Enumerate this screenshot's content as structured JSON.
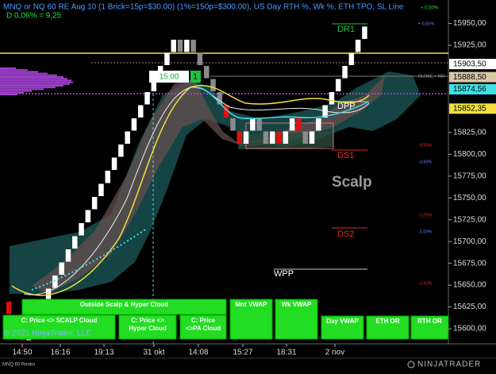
{
  "header": {
    "title": "MNQ or NQ 60 RE Aug 10 (1 Brick=15p=$30.00) (1%=150p=$300.00), US Day RTH %, Wk %, ETH TPO, SL Line",
    "delta": "D 0,06% = 9,25",
    "top_right": "+ 0,50%"
  },
  "price_axis": {
    "ticks": [
      "15950,00",
      "15925,00",
      "15825,00",
      "15800,00",
      "15775,00",
      "15750,00",
      "15725,00",
      "15700,00",
      "15675,00",
      "15650,00",
      "15625,00",
      "15600,00"
    ],
    "tags": [
      {
        "label": "15903,50",
        "color": "#ffffff"
      },
      {
        "label": "15888,50",
        "color": "#d8c8a8"
      },
      {
        "label": "15874,56",
        "color": "#40e0e8"
      },
      {
        "label": "15852,35",
        "color": "#f0e040"
      }
    ]
  },
  "time_axis": [
    "14:50",
    "16:16",
    "19:13",
    "31 okt",
    "14:08",
    "15:27",
    "18:31",
    "2 nov"
  ],
  "levels": {
    "dr1": "DR1",
    "dpp": "DPP",
    "ds1": "DS1",
    "ds2": "DS2",
    "wpp": "WPP"
  },
  "percent_labels": [
    {
      "text": "+ 0,50%",
      "color": "#6a7cff"
    },
    {
      "text": "CLOSE + NO",
      "color": "#aaaaaa"
    },
    {
      "text": "-0,50%",
      "color": "#e03020"
    },
    {
      "text": "-0,60%",
      "color": "#6a7cff"
    },
    {
      "text": "-1,00%",
      "color": "#e03020"
    },
    {
      "text": "-1,00%",
      "color": "#6a7cff"
    },
    {
      "text": "-1,50%",
      "color": "#e03020"
    }
  ],
  "watermark": "Scalp",
  "time_tag": {
    "time": "15:00",
    "count": "1"
  },
  "buttons": [
    "Outside Scalp & Hyper Cloud",
    "C: Price <> SCALP Cloud",
    "C: Price <> Hyper Cloud",
    "C: Price <>PA Cloud",
    "Mnt VWAP",
    "Wk VWAP",
    "Day VWAP",
    "ETH OR",
    "RTH OR"
  ],
  "footer": {
    "copyright": "© 2021 NinjaTrader, LLC",
    "instrument": "MNQ 60 Renko",
    "logo": "NINJATRADER"
  }
}
